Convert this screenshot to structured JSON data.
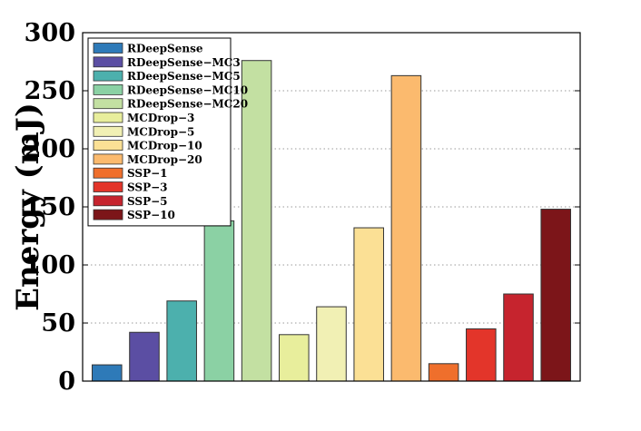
{
  "chart_data": {
    "type": "bar",
    "title": "",
    "xlabel": "",
    "ylabel": "Energy (mJ)",
    "ylim": [
      0,
      300
    ],
    "yticks": [
      "0",
      "50",
      "100",
      "150",
      "200",
      "250",
      "300"
    ],
    "grid": "horizontal dotted",
    "legend_position": "top-left",
    "categories": [
      "RDeepSense",
      "RDeepSense−MC3",
      "RDeepSense−MC5",
      "RDeepSense−MC10",
      "RDeepSense−MC20",
      "MCDrop−3",
      "MCDrop−5",
      "MCDrop−10",
      "MCDrop−20",
      "SSP−1",
      "SSP−3",
      "SSP−5",
      "SSP−10"
    ],
    "values": [
      14,
      42,
      69,
      138,
      276,
      40,
      64,
      132,
      263,
      15,
      45,
      75,
      148
    ],
    "colors": [
      "#2e7ab8",
      "#5b4ea3",
      "#4cb0ad",
      "#8bd1a4",
      "#c3e0a2",
      "#e8ee9c",
      "#f1f0b4",
      "#fbe095",
      "#fbba6e",
      "#ef6f2c",
      "#e3352a",
      "#c6242e",
      "#7c1519"
    ]
  }
}
